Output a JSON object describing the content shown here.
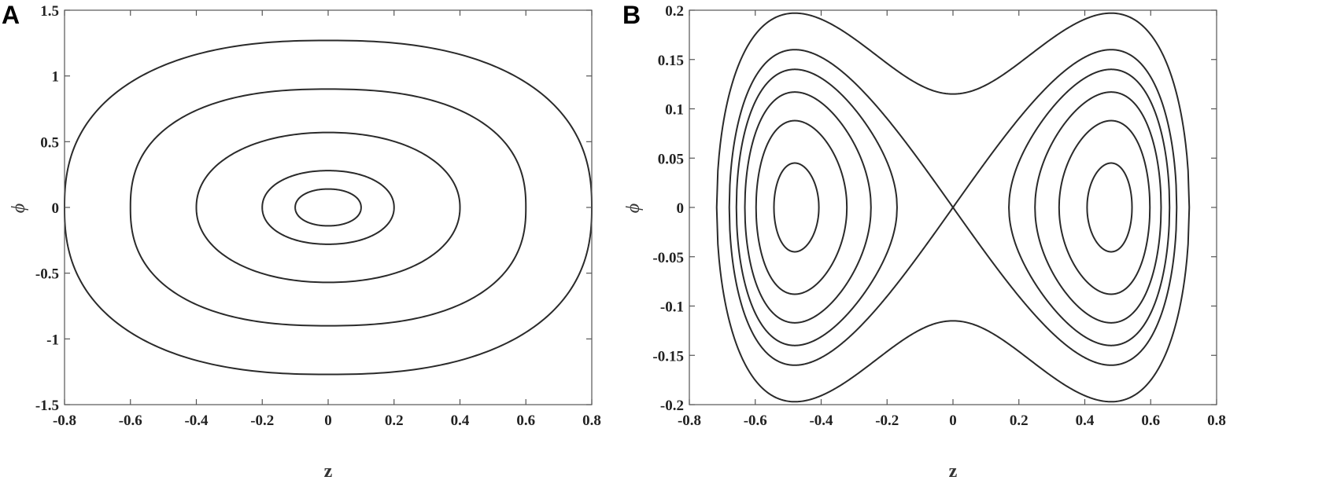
{
  "chart_data": [
    {
      "panel": "A",
      "type": "line",
      "xlabel": "z",
      "ylabel": "ϕ",
      "xlim": [
        -0.8,
        0.8
      ],
      "ylim": [
        -1.5,
        1.5
      ],
      "xticks": [
        -0.8,
        -0.6,
        -0.4,
        -0.2,
        0,
        0.2,
        0.4,
        0.6,
        0.8
      ],
      "xtick_labels": [
        "-0.8",
        "-0.6",
        "-0.4",
        "-0.2",
        "0",
        "0.2",
        "0.4",
        "0.6",
        "0.8"
      ],
      "yticks": [
        -1.5,
        -1,
        -0.5,
        0,
        0.5,
        1,
        1.5
      ],
      "ytick_labels": [
        "-1.5",
        "-1",
        "-0.5",
        "0",
        "0.5",
        "1",
        "1.5"
      ],
      "grid": false,
      "series": [
        {
          "z_amplitude": 0.1,
          "phi_amplitude": 0.14
        },
        {
          "z_amplitude": 0.2,
          "phi_amplitude": 0.28
        },
        {
          "z_amplitude": 0.4,
          "phi_amplitude": 0.57
        },
        {
          "z_amplitude": 0.6,
          "phi_amplitude": 0.9
        },
        {
          "z_amplitude": 0.8,
          "phi_amplitude": 1.27
        }
      ]
    },
    {
      "panel": "B",
      "type": "line",
      "xlabel": "z",
      "ylabel": "ϕ",
      "xlim": [
        -0.8,
        0.8
      ],
      "ylim": [
        -0.2,
        0.2
      ],
      "xticks": [
        -0.8,
        -0.6,
        -0.4,
        -0.2,
        0,
        0.2,
        0.4,
        0.6,
        0.8
      ],
      "xtick_labels": [
        "-0.8",
        "-0.6",
        "-0.4",
        "-0.2",
        "0",
        "0.2",
        "0.4",
        "0.6",
        "0.8"
      ],
      "yticks": [
        -0.2,
        -0.15,
        -0.1,
        -0.05,
        0,
        0.05,
        0.1,
        0.15,
        0.2
      ],
      "ytick_labels": [
        "-0.2",
        "-0.15",
        "-0.1",
        "-0.05",
        "0",
        "0.05",
        "0.1",
        "0.15",
        "0.2"
      ],
      "grid": false,
      "potential": {
        "z_min": 0.48,
        "separatrix_phi_at_min": 0.16
      },
      "series": [
        {
          "kind": "inner-lobes",
          "phi_max": 0.045
        },
        {
          "kind": "inner-lobes",
          "phi_max": 0.088
        },
        {
          "kind": "inner-lobes",
          "phi_max": 0.117
        },
        {
          "kind": "inner-lobes",
          "phi_max": 0.14
        },
        {
          "kind": "separatrix",
          "phi_max": 0.16
        },
        {
          "kind": "outer",
          "phi_at_zero": 0.115,
          "phi_max": 0.187
        }
      ]
    }
  ]
}
